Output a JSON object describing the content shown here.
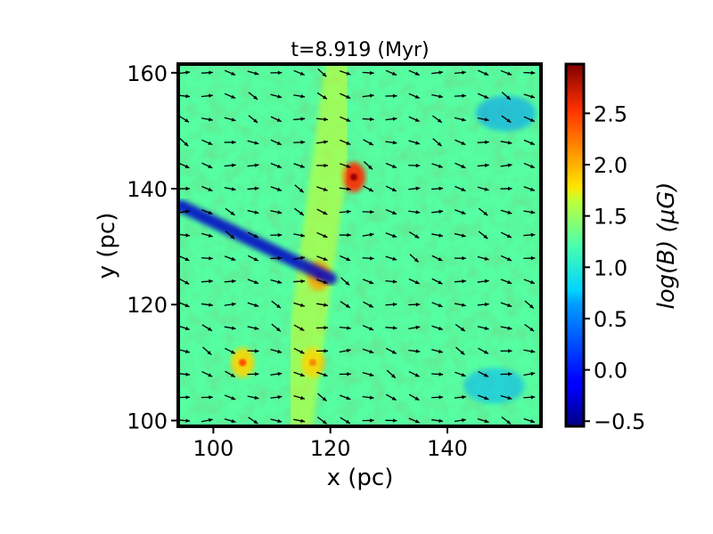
{
  "chart_data": {
    "type": "heatmap",
    "title": "t=8.919 (Myr)",
    "xlabel": "x (pc)",
    "ylabel": "y (pc)",
    "xlim": [
      94,
      156
    ],
    "ylim": [
      99,
      161.5
    ],
    "x_ticks": [
      100,
      120,
      140
    ],
    "y_ticks": [
      100,
      120,
      140,
      160
    ],
    "x_tick_labels": [
      "100",
      "120",
      "140"
    ],
    "y_tick_labels": [
      "100",
      "120",
      "140",
      "160"
    ],
    "grid": false,
    "colorbar": {
      "label": "log(B) (μG)",
      "colormap": "jet",
      "vmin": -0.55,
      "vmax": 2.98,
      "ticks": [
        -0.5,
        0.0,
        0.5,
        1.0,
        1.5,
        2.0,
        2.5
      ],
      "tick_labels": [
        "−0.5",
        "0.0",
        "0.5",
        "1.0",
        "1.5",
        "2.0",
        "2.5"
      ]
    },
    "field": {
      "background_level": 1.15,
      "features": [
        {
          "kind": "high-B clump",
          "x": 124,
          "y": 142,
          "value": 2.4
        },
        {
          "kind": "high-B clump",
          "x": 118,
          "y": 125,
          "value": 2.2
        },
        {
          "kind": "high-B clump",
          "x": 117,
          "y": 110,
          "value": 1.9
        },
        {
          "kind": "high-B clump",
          "x": 105,
          "y": 110,
          "value": 1.8
        },
        {
          "kind": "filament",
          "x": [
            114,
            122
          ],
          "y": [
            100,
            160
          ],
          "value": 1.6
        },
        {
          "kind": "low-B streak",
          "x": [
            94.5,
            120
          ],
          "y": [
            137,
            124.5
          ],
          "value": -0.3
        },
        {
          "kind": "low-B region",
          "x": 150,
          "y": 153,
          "value": 0.4
        },
        {
          "kind": "low-B region",
          "x": 148,
          "y": 106,
          "value": 0.5
        }
      ]
    },
    "vector_field": {
      "nx": 16,
      "ny": 16,
      "x_range": [
        95,
        154
      ],
      "y_range": [
        100,
        160
      ],
      "dominant_direction_deg": -15
    }
  }
}
